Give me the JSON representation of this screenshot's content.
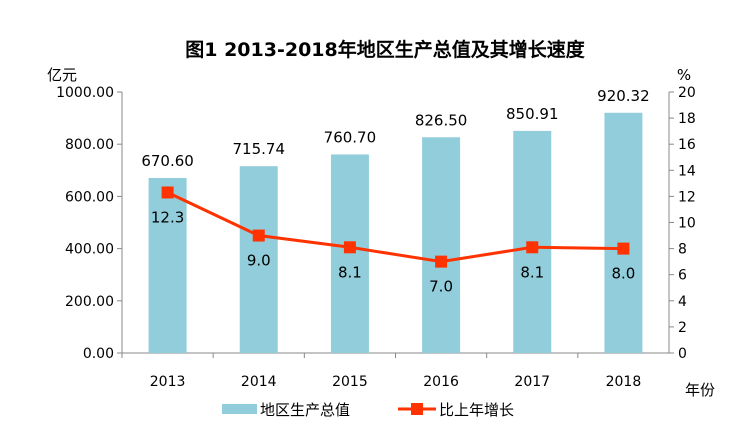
{
  "chart_data": {
    "type": "bar+line",
    "title": "图1  2013-2018年地区生产总值及其增长速度",
    "ylabel_left": "亿元",
    "ylabel_right": "%",
    "xlabel": "年份",
    "categories": [
      "2013",
      "2014",
      "2015",
      "2016",
      "2017",
      "2018"
    ],
    "ylim_left": [
      0,
      1000
    ],
    "yticks_left": [
      "0.00",
      "200.00",
      "400.00",
      "600.00",
      "800.00",
      "1000.00"
    ],
    "ylim_right": [
      0,
      20
    ],
    "yticks_right": [
      "0",
      "2",
      "4",
      "6",
      "8",
      "10",
      "12",
      "14",
      "16",
      "18",
      "20"
    ],
    "series": [
      {
        "name": "地区生产总值",
        "type": "bar",
        "axis": "left",
        "color": "#92cddc",
        "values": [
          670.6,
          715.74,
          760.7,
          826.5,
          850.91,
          920.32
        ],
        "labels": [
          "670.60",
          "715.74",
          "760.70",
          "826.50",
          "850.91",
          "920.32"
        ]
      },
      {
        "name": "比上年增长",
        "type": "line",
        "axis": "right",
        "color": "#ff3300",
        "values": [
          12.3,
          9.0,
          8.1,
          7.0,
          8.1,
          8.0
        ],
        "labels": [
          "12.3",
          "9.0",
          "8.1",
          "7.0",
          "8.1",
          "8.0"
        ]
      }
    ],
    "grid": false,
    "legend": "bottom"
  }
}
